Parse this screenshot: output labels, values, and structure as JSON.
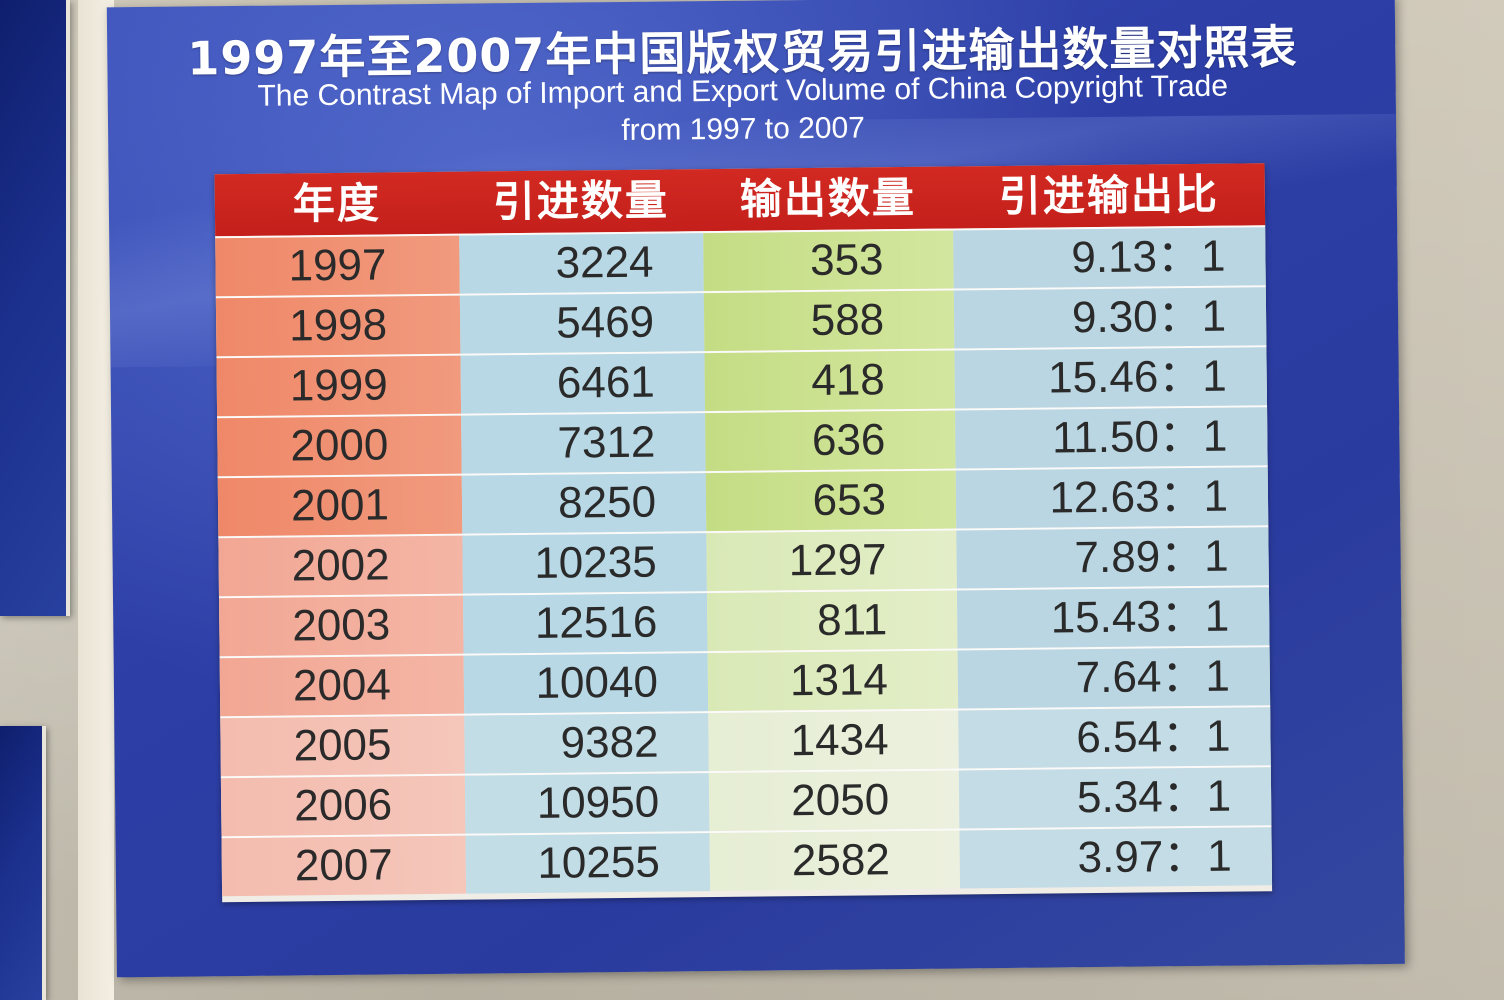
{
  "poster": {
    "title_cn": "1997年至2007年中国版权贸易引进输出数量对照表",
    "title_en_line1": "The Contrast Map of Import and Export Volume of China Copyright Trade",
    "title_en_line2": "from 1997 to 2007"
  },
  "table": {
    "headers": [
      "年度",
      "引进数量",
      "输出数量",
      "引进输出比"
    ],
    "rows": [
      {
        "year": "1997",
        "import": "3224",
        "export": "353",
        "ratio": "9.13：1"
      },
      {
        "year": "1998",
        "import": "5469",
        "export": "588",
        "ratio": "9.30：1"
      },
      {
        "year": "1999",
        "import": "6461",
        "export": "418",
        "ratio": "15.46：1"
      },
      {
        "year": "2000",
        "import": "7312",
        "export": "636",
        "ratio": "11.50：1"
      },
      {
        "year": "2001",
        "import": "8250",
        "export": "653",
        "ratio": "12.63：1"
      },
      {
        "year": "2002",
        "import": "10235",
        "export": "1297",
        "ratio": "7.89：1"
      },
      {
        "year": "2003",
        "import": "12516",
        "export": "811",
        "ratio": "15.43：1"
      },
      {
        "year": "2004",
        "import": "10040",
        "export": "1314",
        "ratio": "7.64：1"
      },
      {
        "year": "2005",
        "import": "9382",
        "export": "1434",
        "ratio": "6.54：1"
      },
      {
        "year": "2006",
        "import": "10950",
        "export": "2050",
        "ratio": "5.34：1"
      },
      {
        "year": "2007",
        "import": "10255",
        "export": "2582",
        "ratio": "3.97：1"
      }
    ]
  },
  "colors": {
    "poster_blue": "#2d3fa7",
    "header_red": "#d22a22",
    "year_column": "#ef8868",
    "import_column": "#b7d8e4",
    "export_column": "#c4dd84",
    "ratio_column": "#b9d6e2"
  }
}
